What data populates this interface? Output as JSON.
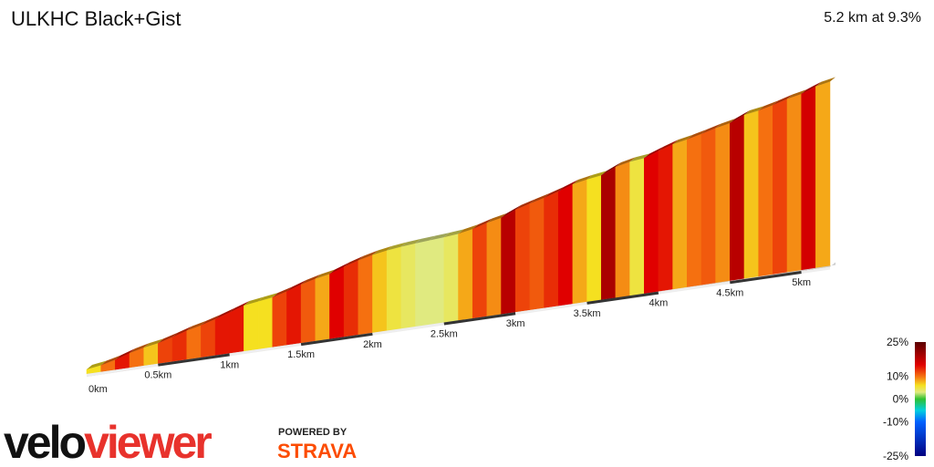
{
  "chart_data": {
    "type": "elevation-profile",
    "title": "ULKHC Black+Gist",
    "summary": "5.2 km at 9.3%",
    "xlim": [
      0,
      5.2
    ],
    "xticks": [
      {
        "value": 0,
        "label": "0km"
      },
      {
        "value": 0.5,
        "label": "0.5km"
      },
      {
        "value": 1,
        "label": "1km"
      },
      {
        "value": 1.5,
        "label": "1.5km"
      },
      {
        "value": 2,
        "label": "2km"
      },
      {
        "value": 2.5,
        "label": "2.5km"
      },
      {
        "value": 3,
        "label": "3km"
      },
      {
        "value": 3.5,
        "label": "3.5km"
      },
      {
        "value": 4,
        "label": "4km"
      },
      {
        "value": 4.5,
        "label": "4.5km"
      },
      {
        "value": 5,
        "label": "5km"
      }
    ],
    "x": [
      0,
      0.1,
      0.2,
      0.3,
      0.4,
      0.5,
      0.6,
      0.7,
      0.8,
      0.9,
      1,
      1.1,
      1.2,
      1.3,
      1.4,
      1.5,
      1.6,
      1.7,
      1.8,
      1.9,
      2,
      2.1,
      2.2,
      2.3,
      2.4,
      2.5,
      2.6,
      2.7,
      2.8,
      2.9,
      3,
      3.1,
      3.2,
      3.3,
      3.4,
      3.5,
      3.6,
      3.7,
      3.8,
      3.9,
      4,
      4.1,
      4.2,
      4.3,
      4.4,
      4.5,
      4.6,
      4.7,
      4.8,
      4.9,
      5,
      5.1
    ],
    "values": [
      6,
      10,
      14,
      10,
      7,
      12,
      13,
      10,
      12,
      14,
      14,
      6,
      6,
      12,
      14,
      11,
      8,
      15,
      13,
      10,
      7,
      5,
      4,
      3,
      3,
      4,
      8,
      12,
      9,
      18,
      12,
      11,
      13,
      15,
      8,
      6,
      19,
      9,
      5,
      15,
      14,
      8,
      10,
      11,
      9,
      18,
      7,
      10,
      12,
      9,
      16,
      8
    ],
    "legend_ylim": [
      -25,
      25
    ],
    "legend_ticks": [
      {
        "value": 25,
        "label": "25%"
      },
      {
        "value": 10,
        "label": "10%"
      },
      {
        "value": 0,
        "label": "0%"
      },
      {
        "value": -10,
        "label": "-10%"
      },
      {
        "value": -25,
        "label": "-25%"
      }
    ],
    "color_scale": [
      {
        "value": 25,
        "color": "#5a0000"
      },
      {
        "value": 15,
        "color": "#e00000"
      },
      {
        "value": 10,
        "color": "#f57010"
      },
      {
        "value": 6,
        "color": "#f5e020"
      },
      {
        "value": 3,
        "color": "#e0ea80"
      },
      {
        "value": 0,
        "color": "#30c030"
      },
      {
        "value": -5,
        "color": "#00d0e0"
      },
      {
        "value": -10,
        "color": "#0060ff"
      },
      {
        "value": -25,
        "color": "#000080"
      }
    ]
  },
  "logo": {
    "velo": "velo",
    "viewer": "viewer",
    "powered": "POWERED BY",
    "strava": "STRAVA"
  }
}
